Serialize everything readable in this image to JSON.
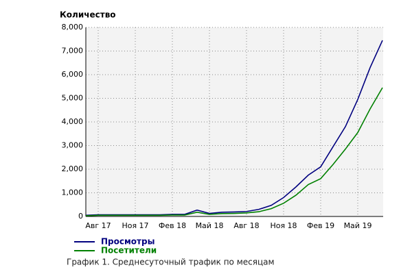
{
  "chart_data": {
    "type": "line",
    "y_label": "Количество",
    "caption": "График 1. Среднесуточный трафик по месяцам",
    "categories": [
      null,
      "Авг 17",
      null,
      null,
      "Ноя 17",
      null,
      null,
      "Фев 18",
      null,
      null,
      "Май 18",
      null,
      null,
      "Авг 18",
      null,
      null,
      "Ноя 18",
      null,
      null,
      "Фев 19",
      null,
      null,
      "Май 19",
      null,
      null
    ],
    "series": [
      {
        "name": "Просмотры",
        "color": "#00007f",
        "values": [
          50,
          70,
          70,
          70,
          70,
          70,
          70,
          90,
          90,
          270,
          130,
          180,
          190,
          210,
          300,
          470,
          800,
          1250,
          1750,
          2100,
          2950,
          3800,
          4950,
          6300,
          7450
        ]
      },
      {
        "name": "Посетители",
        "color": "#008000",
        "values": [
          30,
          50,
          50,
          50,
          50,
          50,
          50,
          60,
          60,
          180,
          90,
          120,
          130,
          150,
          200,
          330,
          560,
          900,
          1350,
          1600,
          2200,
          2850,
          3550,
          4550,
          5450
        ]
      }
    ],
    "ylim": [
      0,
      8000
    ],
    "yticks": [
      0,
      {
        "value": 1000,
        "label": "1,000"
      },
      {
        "value": 2000,
        "label": "2,000"
      },
      {
        "value": 3000,
        "label": "3,000"
      },
      {
        "value": 4000,
        "label": "4,000"
      },
      {
        "value": 5000,
        "label": "5,000"
      },
      {
        "value": 6000,
        "label": "6,000"
      },
      {
        "value": 7000,
        "label": "7,000"
      },
      {
        "value": 8000,
        "label": "8,000"
      }
    ],
    "grid": true
  }
}
